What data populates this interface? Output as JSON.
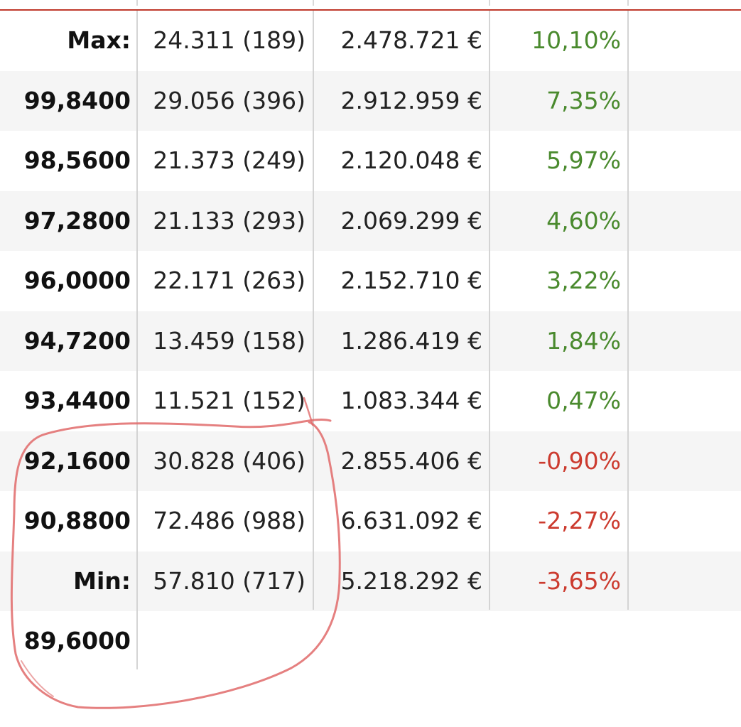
{
  "table": {
    "rows": [
      {
        "label": "Max:",
        "volume": "24.311 (189)",
        "amount": "2.478.721 €",
        "change": "10,10%",
        "sign": "pos"
      },
      {
        "label": "99,8400",
        "volume": "29.056 (396)",
        "amount": "2.912.959 €",
        "change": "7,35%",
        "sign": "pos"
      },
      {
        "label": "98,5600",
        "volume": "21.373 (249)",
        "amount": "2.120.048 €",
        "change": "5,97%",
        "sign": "pos"
      },
      {
        "label": "97,2800",
        "volume": "21.133 (293)",
        "amount": "2.069.299 €",
        "change": "4,60%",
        "sign": "pos"
      },
      {
        "label": "96,0000",
        "volume": "22.171 (263)",
        "amount": "2.152.710 €",
        "change": "3,22%",
        "sign": "pos"
      },
      {
        "label": "94,7200",
        "volume": "13.459 (158)",
        "amount": "1.286.419 €",
        "change": "1,84%",
        "sign": "pos"
      },
      {
        "label": "93,4400",
        "volume": "11.521 (152)",
        "amount": "1.083.344 €",
        "change": "0,47%",
        "sign": "pos"
      },
      {
        "label": "92,1600",
        "volume": "30.828 (406)",
        "amount": "2.855.406 €",
        "change": "-0,90%",
        "sign": "neg"
      },
      {
        "label": "90,8800",
        "volume": "72.486 (988)",
        "amount": "6.631.092 €",
        "change": "-2,27%",
        "sign": "neg"
      },
      {
        "label": "Min:",
        "volume": "57.810 (717)",
        "amount": "5.218.292 €",
        "change": "-3,65%",
        "sign": "neg"
      },
      {
        "label": "89,6000",
        "volume": "",
        "amount": "",
        "change": "",
        "sign": ""
      }
    ]
  },
  "colors": {
    "positive": "#4a8a2e",
    "negative": "#cc3b2f",
    "header_rule": "#c0392b",
    "annotation_stroke": "#e06a6a",
    "row_alt_bg": "#f5f5f5"
  }
}
